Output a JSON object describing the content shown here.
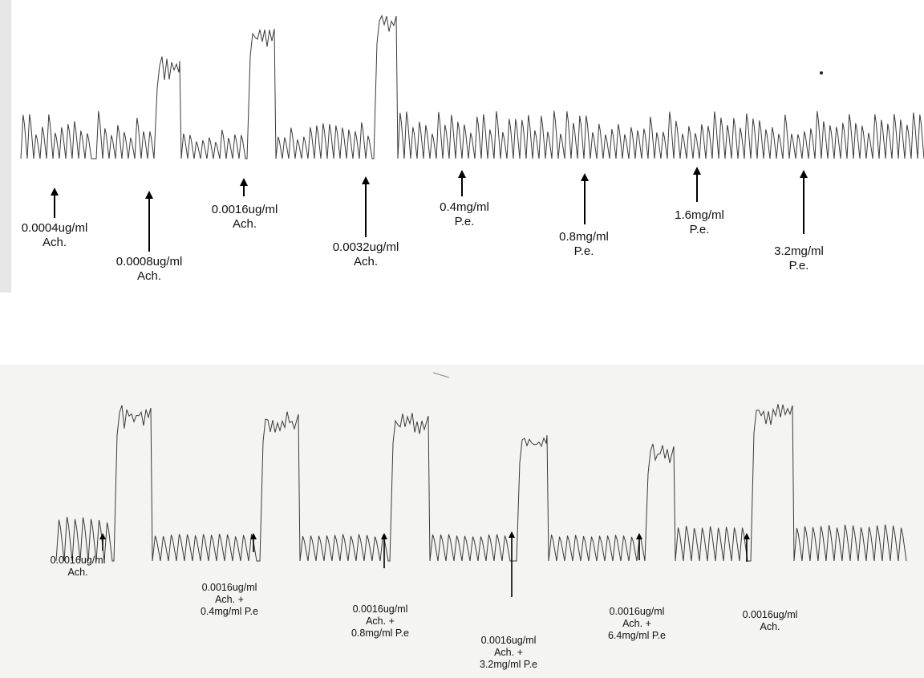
{
  "colors": {
    "trace": "#3a3a3a",
    "arrow": "#000000",
    "paper": "#ffffff",
    "paper_bottom": "#f4f4f2"
  },
  "top_panel": {
    "markers": [
      {
        "lines": [
          "0.0004ug/ml",
          "Ach."
        ]
      },
      {
        "lines": [
          "0.0008ug/ml",
          "Ach."
        ]
      },
      {
        "lines": [
          "0.0016ug/ml",
          "Ach."
        ]
      },
      {
        "lines": [
          "0.0032ug/ml",
          "Ach."
        ]
      },
      {
        "lines": [
          "0.4mg/ml",
          "P.e."
        ]
      },
      {
        "lines": [
          "0.8mg/ml",
          "P.e."
        ]
      },
      {
        "lines": [
          "1.6mg/ml",
          "P.e."
        ]
      },
      {
        "lines": [
          "3.2mg/ml",
          "P.e."
        ]
      }
    ]
  },
  "bottom_panel": {
    "markers": [
      {
        "lines": [
          "0.0016ug/ml",
          "Ach."
        ]
      },
      {
        "lines": [
          "0.0016ug/ml",
          "Ach.   +",
          "0.4mg/ml P.e"
        ]
      },
      {
        "lines": [
          "0.0016ug/ml",
          "Ach.   +",
          "0.8mg/ml P.e"
        ]
      },
      {
        "lines": [
          "0.0016ug/ml",
          "Ach.   +",
          "3.2mg/ml P.e"
        ]
      },
      {
        "lines": [
          "0.0016ug/ml",
          "Ach.   +",
          "6.4mg/ml P.e"
        ]
      },
      {
        "lines": [
          "0.0016ug/ml",
          "Ach."
        ]
      }
    ]
  }
}
